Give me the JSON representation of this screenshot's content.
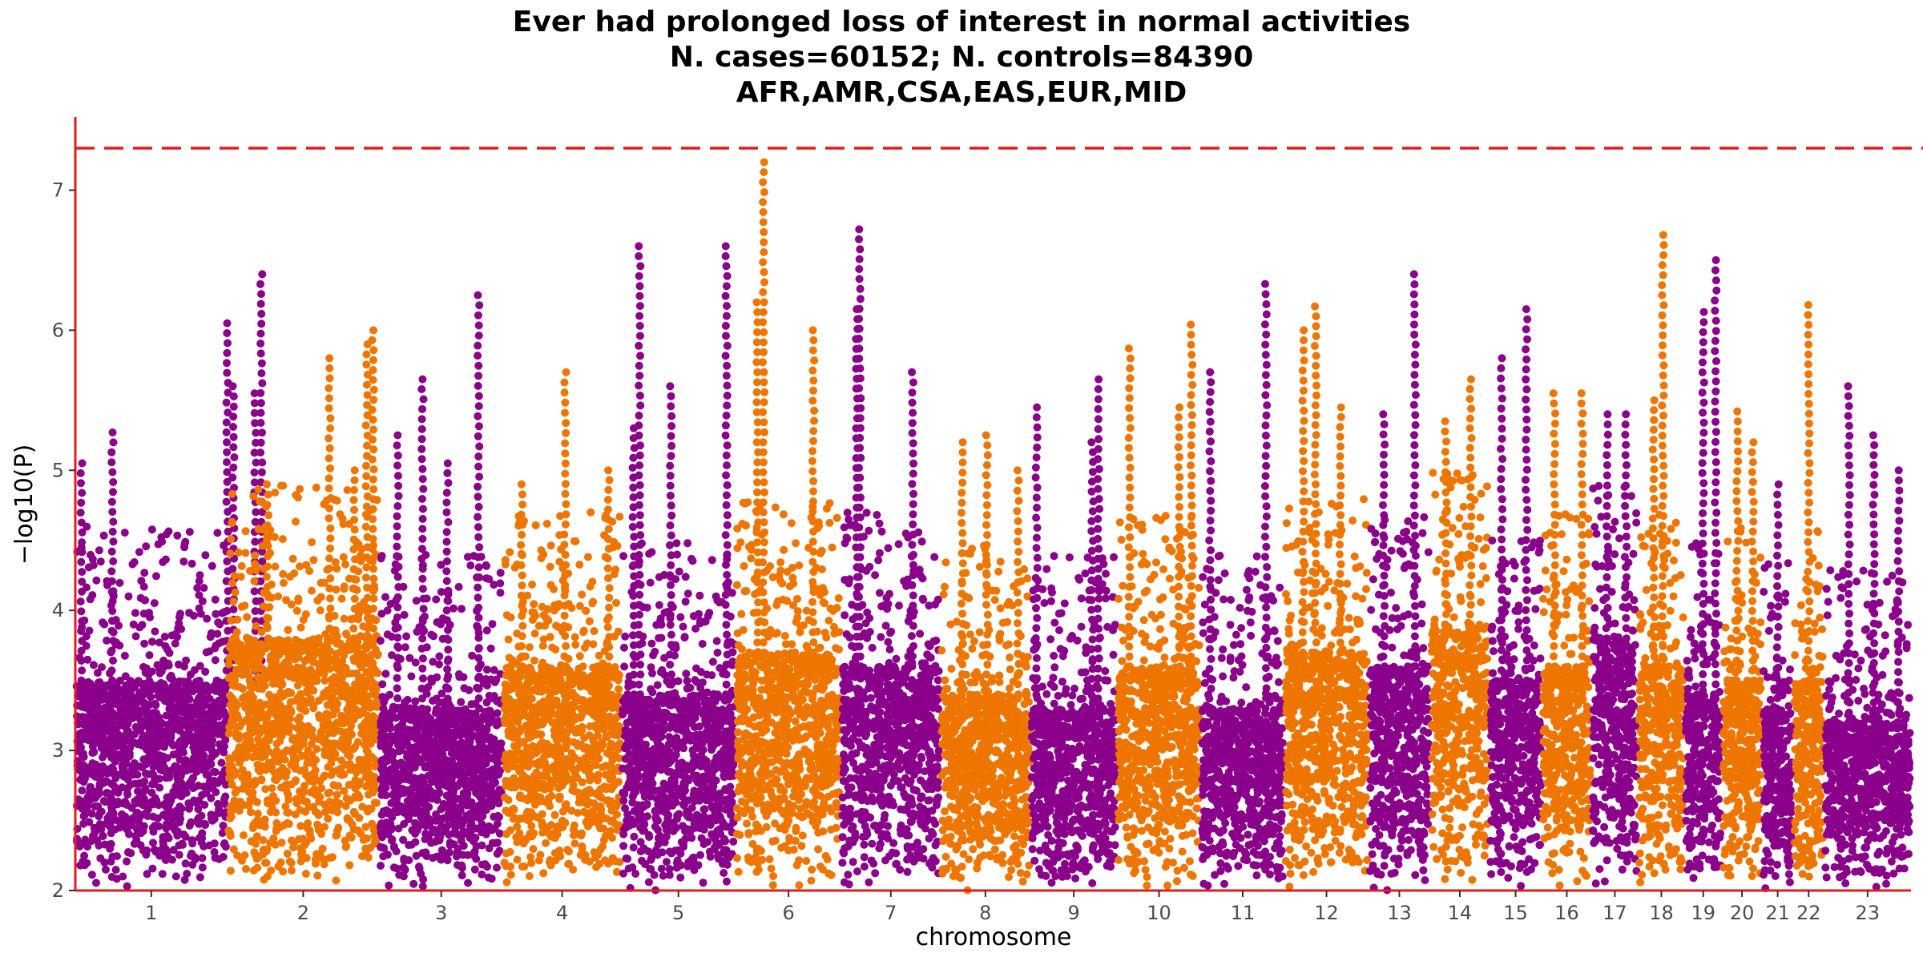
{
  "chart_data": {
    "type": "scatter",
    "subtype": "manhattan",
    "title": [
      "Ever had prolonged loss of interest in normal activities",
      "N. cases=60152; N. controls=84390",
      "AFR,AMR,CSA,EAS,EUR,MID"
    ],
    "xlabel": "chromosome",
    "ylabel": "−log10(P)",
    "ylim": [
      2,
      7.5
    ],
    "yticks": [
      2,
      3,
      4,
      5,
      6,
      7
    ],
    "significance_threshold": 7.3,
    "threshold_color": "#e41a1c",
    "axis_color": "#e41a1c",
    "series_colors": [
      "#8b008b",
      "#ee7600"
    ],
    "chromosomes": [
      {
        "label": "1",
        "start": 0,
        "end": 245,
        "color_index": 0,
        "baseline": 3.5,
        "peaks": [
          [
            10,
            5.05
          ],
          [
            60,
            5.27
          ],
          [
            245,
            6.05
          ],
          [
            255,
            5.6
          ],
          [
            290,
            5.55
          ],
          [
            300,
            6.4
          ]
        ]
      },
      {
        "label": "2",
        "start": 245,
        "end": 490,
        "color_index": 1,
        "baseline": 3.8,
        "peaks": [
          [
            310,
            4.9
          ],
          [
            410,
            5.8
          ],
          [
            450,
            5.0
          ],
          [
            470,
            5.9
          ],
          [
            480,
            6.0
          ]
        ]
      },
      {
        "label": "3",
        "start": 490,
        "end": 690,
        "color_index": 0,
        "baseline": 3.3,
        "peaks": [
          [
            520,
            5.25
          ],
          [
            560,
            5.65
          ],
          [
            600,
            5.05
          ],
          [
            650,
            6.25
          ]
        ]
      },
      {
        "label": "4",
        "start": 690,
        "end": 880,
        "color_index": 1,
        "baseline": 3.6,
        "peaks": [
          [
            720,
            4.9
          ],
          [
            790,
            5.7
          ],
          [
            860,
            5.0
          ]
        ]
      },
      {
        "label": "5",
        "start": 880,
        "end": 1065,
        "color_index": 0,
        "baseline": 3.4,
        "peaks": [
          [
            900,
            5.3
          ],
          [
            910,
            6.6
          ],
          [
            960,
            5.6
          ],
          [
            1050,
            6.6
          ]
        ]
      },
      {
        "label": "6",
        "start": 1065,
        "end": 1235,
        "color_index": 1,
        "baseline": 3.7,
        "peaks": [
          [
            1100,
            6.2
          ],
          [
            1110,
            7.2
          ],
          [
            1190,
            6.0
          ]
        ]
      },
      {
        "label": "7",
        "start": 1235,
        "end": 1395,
        "color_index": 0,
        "baseline": 3.6,
        "peaks": [
          [
            1260,
            6.15
          ],
          [
            1265,
            6.72
          ],
          [
            1350,
            5.7
          ]
        ]
      },
      {
        "label": "8",
        "start": 1395,
        "end": 1540,
        "color_index": 1,
        "baseline": 3.4,
        "peaks": [
          [
            1430,
            5.2
          ],
          [
            1470,
            5.25
          ],
          [
            1520,
            5.0
          ]
        ]
      },
      {
        "label": "9",
        "start": 1540,
        "end": 1680,
        "color_index": 0,
        "baseline": 3.3,
        "peaks": [
          [
            1550,
            5.45
          ],
          [
            1640,
            5.2
          ],
          [
            1650,
            5.65
          ]
        ]
      },
      {
        "label": "10",
        "start": 1680,
        "end": 1815,
        "color_index": 1,
        "baseline": 3.6,
        "peaks": [
          [
            1700,
            5.87
          ],
          [
            1780,
            5.45
          ],
          [
            1800,
            6.04
          ]
        ]
      },
      {
        "label": "11",
        "start": 1815,
        "end": 1950,
        "color_index": 0,
        "baseline": 3.3,
        "peaks": [
          [
            1830,
            5.7
          ],
          [
            1920,
            6.33
          ]
        ]
      },
      {
        "label": "12",
        "start": 1950,
        "end": 2085,
        "color_index": 1,
        "baseline": 3.7,
        "peaks": [
          [
            1980,
            6.0
          ],
          [
            2000,
            6.17
          ],
          [
            2040,
            5.45
          ]
        ]
      },
      {
        "label": "13",
        "start": 2085,
        "end": 2185,
        "color_index": 0,
        "baseline": 3.6,
        "peaks": [
          [
            2110,
            5.4
          ],
          [
            2160,
            6.4
          ]
        ]
      },
      {
        "label": "14",
        "start": 2185,
        "end": 2280,
        "color_index": 1,
        "baseline": 3.9,
        "peaks": [
          [
            2210,
            5.35
          ],
          [
            2250,
            5.65
          ]
        ]
      },
      {
        "label": "15",
        "start": 2280,
        "end": 2365,
        "color_index": 0,
        "baseline": 3.5,
        "peaks": [
          [
            2300,
            5.8
          ],
          [
            2340,
            6.15
          ]
        ]
      },
      {
        "label": "16",
        "start": 2365,
        "end": 2445,
        "color_index": 1,
        "baseline": 3.6,
        "peaks": [
          [
            2385,
            5.55
          ],
          [
            2430,
            5.55
          ]
        ]
      },
      {
        "label": "17",
        "start": 2445,
        "end": 2520,
        "color_index": 0,
        "baseline": 3.8,
        "peaks": [
          [
            2470,
            5.4
          ],
          [
            2500,
            5.4
          ]
        ]
      },
      {
        "label": "18",
        "start": 2520,
        "end": 2595,
        "color_index": 1,
        "baseline": 3.6,
        "peaks": [
          [
            2545,
            5.5
          ],
          [
            2560,
            6.68
          ]
        ]
      },
      {
        "label": "19",
        "start": 2595,
        "end": 2655,
        "color_index": 0,
        "baseline": 3.4,
        "peaks": [
          [
            2625,
            6.13
          ],
          [
            2645,
            6.5
          ]
        ]
      },
      {
        "label": "20",
        "start": 2655,
        "end": 2720,
        "color_index": 1,
        "baseline": 3.5,
        "peaks": [
          [
            2680,
            5.42
          ],
          [
            2705,
            5.2
          ]
        ]
      },
      {
        "label": "21",
        "start": 2720,
        "end": 2770,
        "color_index": 0,
        "baseline": 3.3,
        "peaks": [
          [
            2745,
            4.9
          ]
        ]
      },
      {
        "label": "22",
        "start": 2770,
        "end": 2820,
        "color_index": 1,
        "baseline": 3.5,
        "peaks": [
          [
            2795,
            6.18
          ]
        ]
      },
      {
        "label": "23",
        "start": 2820,
        "end": 2960,
        "color_index": 0,
        "baseline": 3.2,
        "peaks": [
          [
            2860,
            5.6
          ],
          [
            2900,
            5.25
          ],
          [
            2940,
            5.0
          ]
        ]
      }
    ]
  }
}
